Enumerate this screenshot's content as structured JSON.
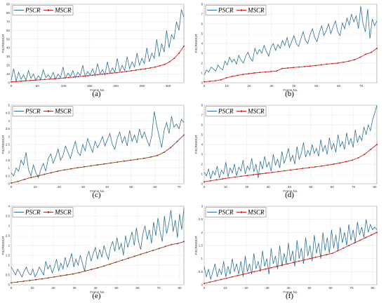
{
  "chart_data": [
    {
      "type": "line",
      "caption": "(a)",
      "xlabel": "Frame No.",
      "ylabel": "PSCR/MSCR",
      "xlim": [
        0,
        330
      ],
      "ylim": [
        0,
        90
      ],
      "xticks": [
        0,
        50,
        100,
        150,
        200,
        250,
        300
      ],
      "yticks": [
        0,
        10,
        20,
        30,
        40,
        50,
        60,
        70,
        80,
        90
      ],
      "legend": [
        "PSCR",
        "MSCR"
      ],
      "legend_position": "top-left",
      "series": [
        {
          "name": "PSCR",
          "color": "#2e7193",
          "values": [
            3,
            16,
            2,
            12,
            4,
            9,
            3,
            14,
            5,
            10,
            3,
            8,
            4,
            15,
            6,
            9,
            5,
            12,
            4,
            10,
            6,
            18,
            5,
            11,
            7,
            14,
            6,
            12,
            8,
            20,
            7,
            13,
            9,
            16,
            8,
            22,
            10,
            15,
            9,
            24,
            11,
            17,
            12,
            28,
            13,
            20,
            14,
            30,
            16,
            24,
            18,
            34,
            20,
            28,
            22,
            40,
            24,
            34,
            28,
            50,
            30,
            45,
            35,
            60,
            40,
            55,
            50,
            70,
            60,
            84,
            75
          ]
        },
        {
          "name": "MSCR",
          "color": "#cc2222",
          "markers": true,
          "values": [
            1,
            1.4,
            1.8,
            2.2,
            2.6,
            3,
            3.4,
            3.8,
            4.2,
            4.6,
            5,
            5.5,
            6,
            6.5,
            7,
            7.5,
            8,
            8.6,
            9.2,
            9.8,
            10.4,
            11,
            11.6,
            12.3,
            13,
            13.7,
            14.5,
            15.3,
            16,
            17,
            18,
            19.5,
            21,
            24,
            28,
            34,
            42
          ]
        }
      ]
    },
    {
      "type": "line",
      "caption": "(b)",
      "xlabel": "Frame No.",
      "ylabel": "PSCR/MSCR",
      "xlim": [
        0,
        77
      ],
      "ylim": [
        0,
        8
      ],
      "xticks": [
        0,
        10,
        20,
        30,
        40,
        50,
        60,
        70
      ],
      "yticks": [
        0,
        1,
        2,
        3,
        4,
        5,
        6,
        7,
        8
      ],
      "legend": [
        "PSCR",
        "MSCR"
      ],
      "legend_position": "top-left",
      "series": [
        {
          "name": "PSCR",
          "color": "#2e7193",
          "values": [
            0.8,
            1.3,
            1.1,
            1.6,
            1.4,
            1.2,
            1.8,
            1.5,
            1.3,
            2.2,
            1.8,
            2.6,
            2.1,
            2.4,
            1.9,
            2.8,
            2.3,
            2.0,
            2.7,
            3.1,
            2.5,
            2.2,
            3.5,
            2.9,
            3.4,
            3.0,
            3.8,
            3.2,
            2.7,
            3.6,
            4.0,
            3.3,
            3.9,
            3.5,
            4.3,
            3.8,
            4.6,
            3.6,
            4.2,
            4.8,
            4.0,
            3.7,
            4.5,
            5.2,
            4.3,
            4.0,
            4.9,
            5.5,
            4.6,
            4.2,
            5.1,
            5.8,
            4.8,
            5.3,
            6.0,
            5.0,
            5.7,
            6.3,
            5.2,
            4.8,
            6.1,
            5.5,
            6.6,
            5.9,
            7.0,
            6.2,
            6.8,
            5.5,
            7.8,
            6.0,
            5.2,
            7.5,
            4.5,
            6.5,
            5.8,
            6.3
          ]
        },
        {
          "name": "MSCR",
          "color": "#cc2222",
          "markers": true,
          "values": [
            0.1,
            0.15,
            0.2,
            0.3,
            0.5,
            0.65,
            0.75,
            0.85,
            0.92,
            1.0,
            1.05,
            1.1,
            1.15,
            1.2,
            1.45,
            1.5,
            1.55,
            1.6,
            1.65,
            1.7,
            1.75,
            1.82,
            1.9,
            1.95,
            2.0,
            2.1,
            2.2,
            2.35,
            2.6,
            2.9,
            3.1,
            3.5
          ]
        }
      ]
    },
    {
      "type": "line",
      "caption": "(c)",
      "xlabel": "Frame No.",
      "ylabel": "PSCR/MSCR",
      "xlim": [
        0,
        72
      ],
      "ylim": [
        0,
        5
      ],
      "xticks": [
        0,
        10,
        20,
        30,
        40,
        50,
        60,
        70
      ],
      "yticks": [
        0,
        0.5,
        1,
        1.5,
        2,
        2.5,
        3,
        3.5,
        4,
        4.5,
        5
      ],
      "legend": [
        "PSCR",
        "MSCR"
      ],
      "legend_position": "top-left",
      "series": [
        {
          "name": "PSCR",
          "color": "#2e7193",
          "values": [
            0.7,
            0.5,
            1.0,
            0.8,
            1.5,
            1.2,
            2.0,
            0.9,
            0.5,
            1.2,
            0.7,
            0.4,
            0.9,
            1.3,
            0.8,
            1.6,
            1.9,
            1.3,
            1.7,
            2.2,
            1.5,
            1.8,
            2.4,
            2.0,
            1.6,
            2.2,
            2.7,
            2.0,
            1.8,
            2.5,
            2.1,
            2.9,
            2.4,
            2.0,
            2.7,
            2.3,
            2.6,
            3.0,
            2.4,
            2.8,
            3.2,
            2.5,
            2.2,
            2.9,
            3.3,
            2.6,
            3.0,
            2.4,
            3.4,
            2.7,
            3.1,
            2.6,
            3.5,
            2.9,
            3.3,
            2.8,
            2.4,
            3.1,
            4.6,
            3.7,
            3.0,
            2.3,
            3.4,
            3.9,
            3.2,
            4.3,
            3.6,
            3.8,
            3.5,
            4.1,
            3.9
          ]
        },
        {
          "name": "MSCR",
          "color": "#8b3a1a",
          "markers": true,
          "values": [
            0.05,
            0.15,
            0.28,
            0.4,
            0.5,
            0.6,
            0.7,
            0.8,
            0.88,
            0.95,
            1.02,
            1.08,
            1.14,
            1.2,
            1.26,
            1.32,
            1.38,
            1.44,
            1.5,
            1.56,
            1.62,
            1.7,
            1.8,
            2.0,
            2.3,
            2.7,
            3.1
          ]
        }
      ]
    },
    {
      "type": "line",
      "caption": "(d)",
      "xlabel": "Frame No.",
      "ylabel": "PSCR/MSCR",
      "xlim": [
        0,
        81
      ],
      "ylim": [
        0,
        8
      ],
      "xticks": [
        0,
        10,
        20,
        30,
        40,
        50,
        60,
        70,
        80
      ],
      "yticks": [
        0,
        1,
        2,
        3,
        4,
        5,
        6,
        7,
        8
      ],
      "legend": [
        "PSCR",
        "MSCR"
      ],
      "legend_position": "top-left",
      "series": [
        {
          "name": "PSCR",
          "color": "#2e7193",
          "values": [
            1.2,
            0.8,
            1.5,
            0.5,
            1.3,
            0.9,
            1.8,
            0.6,
            1.4,
            1.0,
            2.2,
            0.7,
            1.6,
            1.1,
            2.0,
            0.8,
            1.7,
            1.3,
            2.4,
            1.0,
            1.8,
            1.4,
            2.6,
            1.2,
            2.0,
            0.6,
            2.3,
            1.5,
            2.8,
            1.7,
            2.2,
            1.3,
            3.0,
            1.9,
            2.5,
            1.6,
            3.3,
            2.1,
            2.7,
            3.6,
            2.3,
            2.9,
            2.0,
            3.8,
            2.5,
            3.1,
            4.2,
            2.7,
            3.4,
            2.9,
            4.0,
            3.1,
            3.6,
            2.8,
            4.5,
            3.3,
            3.9,
            3.0,
            4.7,
            3.5,
            4.1,
            3.2,
            5.0,
            3.8,
            4.3,
            3.5,
            5.2,
            4.0,
            4.6,
            3.7,
            5.5,
            4.2,
            4.9,
            4.4,
            5.8,
            5.0,
            6.0,
            5.4,
            6.5,
            7.2,
            8.0
          ]
        },
        {
          "name": "MSCR",
          "color": "#cc2222",
          "markers": true,
          "values": [
            0.2,
            0.3,
            0.4,
            0.5,
            0.6,
            0.68,
            0.76,
            0.84,
            0.92,
            1.0,
            1.08,
            1.16,
            1.24,
            1.32,
            1.4,
            1.48,
            1.56,
            1.64,
            1.72,
            1.8,
            1.9,
            2.0,
            2.12,
            2.25,
            2.4,
            2.65,
            3.0,
            3.5,
            4.0
          ]
        }
      ]
    },
    {
      "type": "line",
      "caption": "(e)",
      "xlabel": "Frame No.",
      "ylabel": "PSCR/MSCR",
      "xlim": [
        0,
        82
      ],
      "ylim": [
        0,
        4
      ],
      "xticks": [
        0,
        10,
        20,
        30,
        40,
        50,
        60,
        70,
        80
      ],
      "yticks": [
        0,
        0.5,
        1,
        1.5,
        2,
        2.5,
        3,
        3.5,
        4
      ],
      "legend": [
        "PSCR",
        "MSCR"
      ],
      "legend_position": "top-left",
      "series": [
        {
          "name": "PSCR",
          "color": "#2e7193",
          "values": [
            0.9,
            0.7,
            0.5,
            0.8,
            0.6,
            0.4,
            0.7,
            0.9,
            0.6,
            0.5,
            0.8,
            0.4,
            0.6,
            0.9,
            0.7,
            0.5,
            1.2,
            0.8,
            1.0,
            0.6,
            0.9,
            1.3,
            0.7,
            1.1,
            0.8,
            1.4,
            0.9,
            1.2,
            1.6,
            0.9,
            1.3,
            1.0,
            1.5,
            1.1,
            0.7,
            1.4,
            1.7,
            1.2,
            1.6,
            1.9,
            1.3,
            1.8,
            1.4,
            2.0,
            1.6,
            1.3,
            1.9,
            2.2,
            1.7,
            2.4,
            1.8,
            2.1,
            1.5,
            2.5,
            1.9,
            2.3,
            2.7,
            2.0,
            2.9,
            2.2,
            1.8,
            2.6,
            3.0,
            2.3,
            2.8,
            2.1,
            3.2,
            2.5,
            3.4,
            2.7,
            2.2,
            3.5,
            2.6,
            3.1,
            3.8,
            2.7,
            3.3,
            2.4,
            3.6,
            2.8,
            3.9
          ]
        },
        {
          "name": "MSCR",
          "color": "#8b3a1a",
          "markers": true,
          "values": [
            0.1,
            0.14,
            0.18,
            0.22,
            0.26,
            0.3,
            0.35,
            0.4,
            0.45,
            0.5,
            0.55,
            0.62,
            0.7,
            0.78,
            0.86,
            0.95,
            1.05,
            1.15,
            1.25,
            1.35,
            1.45,
            1.55,
            1.65,
            1.75,
            1.85,
            1.95,
            2.05,
            2.1,
            2.2
          ]
        }
      ]
    },
    {
      "type": "line",
      "caption": "(f)",
      "xlabel": "Frame No.",
      "ylabel": "PSCR/MSCR",
      "xlim": [
        0,
        82
      ],
      "ylim": [
        0,
        3
      ],
      "xticks": [
        0,
        10,
        20,
        30,
        40,
        50,
        60,
        70,
        80
      ],
      "yticks": [
        0,
        0.5,
        1,
        1.5,
        2,
        2.5,
        3
      ],
      "legend": [
        "PSCR",
        "MSCR"
      ],
      "legend_position": "top-left",
      "series": [
        {
          "name": "PSCR",
          "color": "#2e7193",
          "values": [
            0.7,
            0.3,
            0.6,
            0.2,
            0.5,
            0.8,
            0.3,
            0.6,
            0.4,
            0.9,
            0.3,
            0.7,
            0.4,
            1.0,
            0.5,
            0.8,
            0.4,
            0.9,
            0.3,
            1.1,
            0.5,
            0.8,
            0.4,
            1.2,
            0.6,
            0.9,
            0.5,
            1.3,
            0.7,
            1.0,
            0.4,
            1.4,
            0.8,
            1.1,
            0.6,
            1.5,
            0.7,
            1.2,
            0.8,
            1.6,
            0.9,
            1.3,
            0.7,
            1.7,
            1.0,
            1.4,
            0.8,
            1.8,
            1.1,
            1.5,
            0.9,
            1.9,
            1.2,
            1.6,
            1.0,
            2.0,
            1.3,
            1.8,
            1.2,
            2.1,
            1.4,
            1.9,
            1.3,
            2.2,
            1.6,
            2.0,
            1.5,
            2.3,
            1.7,
            2.1,
            1.6,
            2.4,
            1.9,
            2.2,
            1.8,
            2.5,
            2.0,
            2.3,
            2.1,
            2.2,
            2.1
          ]
        },
        {
          "name": "MSCR",
          "color": "#cc2222",
          "markers": true,
          "values": [
            0.05,
            0.1,
            0.15,
            0.2,
            0.25,
            0.3,
            0.35,
            0.4,
            0.45,
            0.5,
            0.55,
            0.6,
            0.65,
            0.7,
            0.75,
            0.8,
            0.85,
            0.9,
            0.95,
            1.0,
            1.05,
            1.1,
            1.15,
            1.2,
            1.3,
            1.4,
            1.5,
            1.6,
            1.7,
            1.8,
            1.9,
            2.0
          ]
        }
      ]
    }
  ]
}
